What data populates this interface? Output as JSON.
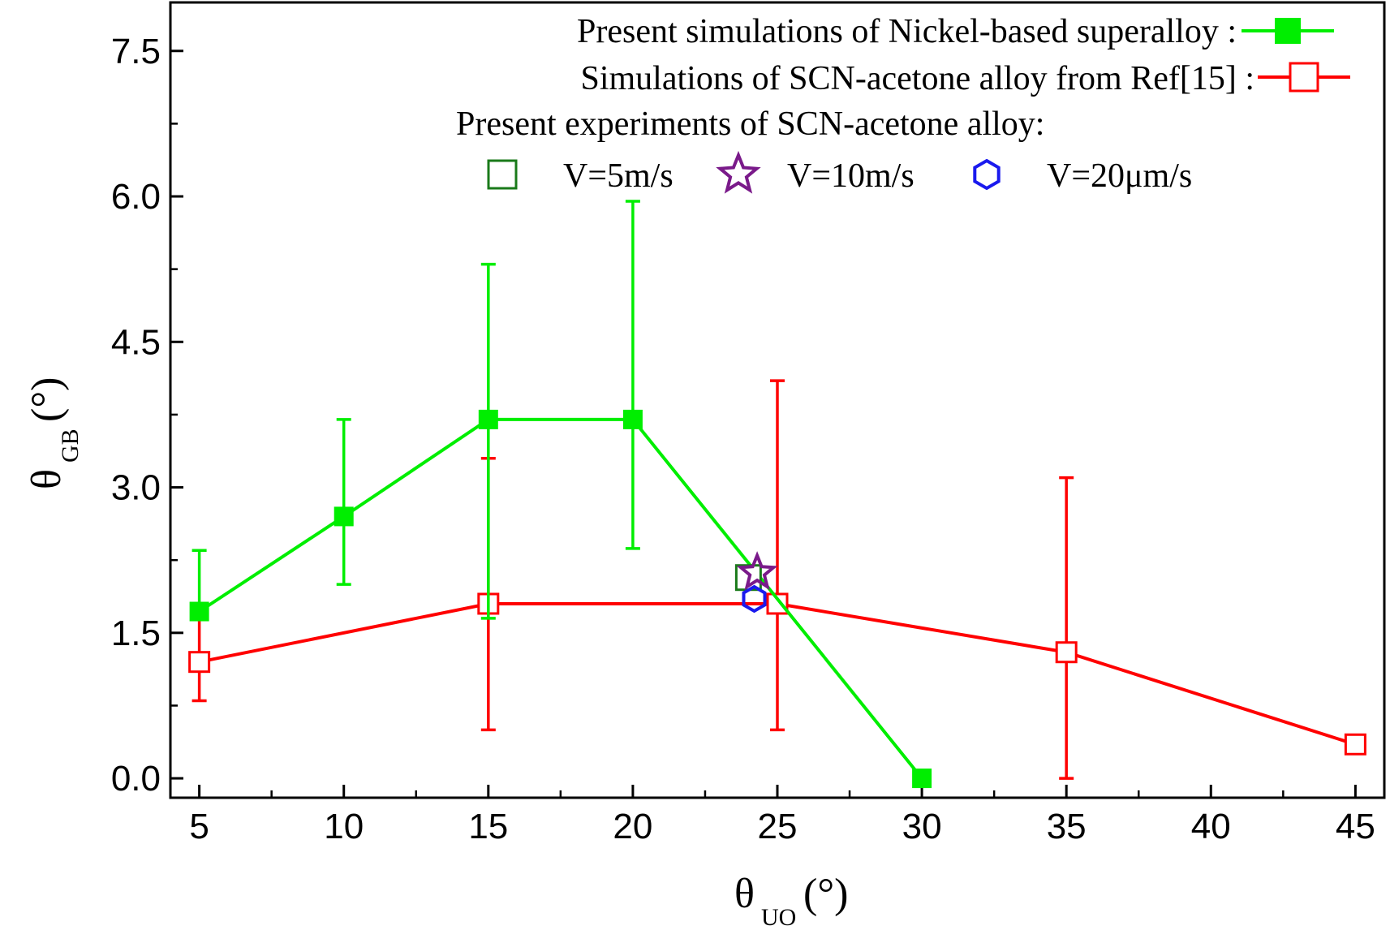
{
  "chart_data": {
    "type": "line",
    "xlabel": "θ",
    "xlabel_sub": "UO",
    "xlabel_unit": "(°)",
    "ylabel": "θ",
    "ylabel_sub": "GB",
    "ylabel_unit": "(°)",
    "xlim": [
      4,
      46
    ],
    "ylim": [
      -0.2,
      8.0
    ],
    "x_ticks": [
      5,
      10,
      15,
      20,
      25,
      30,
      35,
      40,
      45
    ],
    "x_tick_labels": [
      "5",
      "10",
      "15",
      "20",
      "25",
      "30",
      "35",
      "40",
      "45"
    ],
    "y_ticks": [
      0.0,
      1.5,
      3.0,
      4.5,
      6.0,
      7.5
    ],
    "y_tick_labels": [
      "0.0",
      "1.5",
      "3.0",
      "4.5",
      "6.0",
      "7.5"
    ],
    "grid": false,
    "legend_position": "top-right",
    "series": [
      {
        "name": "Present simulations of Nickel-based superalloy :",
        "color": "#00ee00",
        "marker": "filled-square",
        "x": [
          5,
          10,
          15,
          20,
          30
        ],
        "y": [
          1.72,
          2.7,
          3.7,
          3.7,
          0.0
        ],
        "err_low": [
          1.65,
          2.0,
          1.65,
          2.37,
          null
        ],
        "err_high": [
          2.35,
          3.7,
          5.3,
          5.95,
          null
        ]
      },
      {
        "name": "Simulations of SCN-acetone alloy from Ref[15] :",
        "color": "#ff0000",
        "marker": "open-square",
        "x": [
          5,
          15,
          25,
          35,
          45
        ],
        "y": [
          1.2,
          1.8,
          1.8,
          1.3,
          0.35
        ],
        "err_low": [
          0.8,
          0.5,
          0.5,
          0.0,
          null
        ],
        "err_high": [
          1.7,
          3.3,
          4.1,
          3.1,
          null
        ]
      }
    ],
    "experiments_header": "Present experiments of SCN-acetone alloy:",
    "experiments": [
      {
        "name": "V=5m/s",
        "color": "#1a7a1a",
        "marker": "open-square",
        "x": 24.0,
        "y": 2.07
      },
      {
        "name": "V=10m/s",
        "color": "#7a1a8a",
        "marker": "open-star",
        "x": 24.3,
        "y": 2.12
      },
      {
        "name": "V=20μm/s",
        "color": "#1a1aee",
        "marker": "open-hexagon",
        "x": 24.2,
        "y": 1.85
      }
    ]
  }
}
